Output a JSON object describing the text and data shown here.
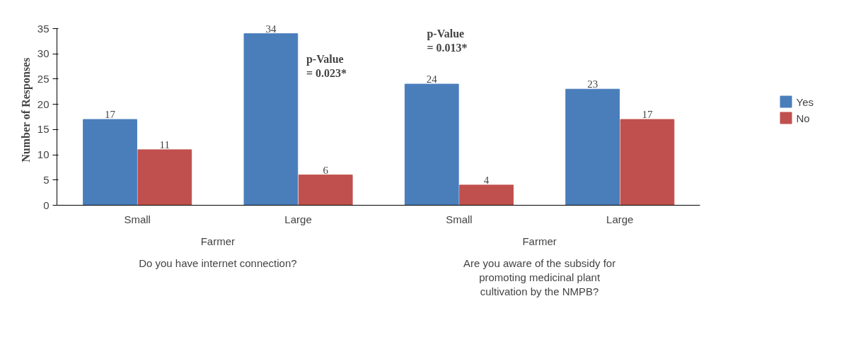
{
  "chart_data": {
    "type": "bar",
    "ylabel": "Number of Responses",
    "categories": [
      "Small",
      "Large",
      "Small",
      "Large"
    ],
    "series": [
      {
        "name": "Yes",
        "color": "#4a7ebb",
        "values": [
          17,
          34,
          24,
          23
        ]
      },
      {
        "name": "No",
        "color": "#c0504d",
        "values": [
          11,
          6,
          4,
          17
        ]
      }
    ],
    "ylim": [
      0,
      35
    ],
    "yticks": [
      0,
      5,
      10,
      15,
      20,
      25,
      30,
      35
    ],
    "grid": false,
    "legend": "right",
    "data_labels": true,
    "annotations": [
      "p-Value = 0.023*",
      "p-Value = 0.013*",
      "Farmer",
      "Farmer",
      "Do you have internet connection?",
      "Are you aware of the subsidy for promoting medicinal plant cultivation by the NMPB?"
    ]
  }
}
